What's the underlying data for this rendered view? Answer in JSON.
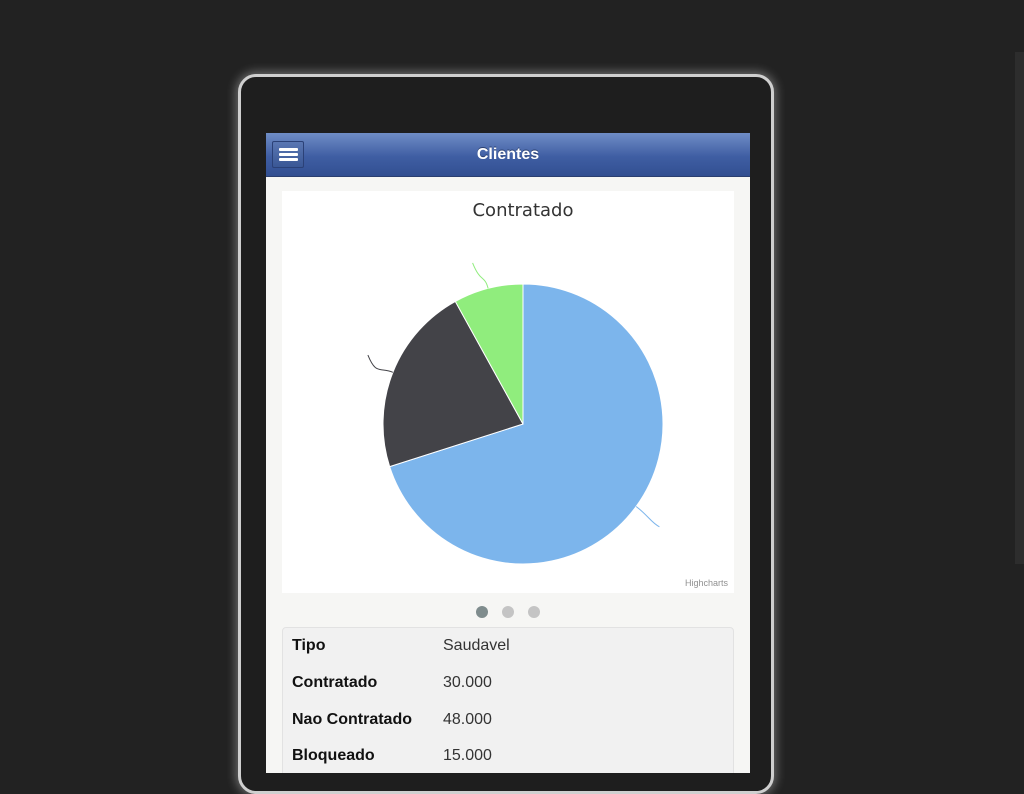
{
  "header": {
    "title": "Clientes",
    "menu_icon": "hamburger-menu-icon"
  },
  "chart_data": {
    "type": "pie",
    "title": "Contratado",
    "credit": "Highcharts",
    "slices": [
      {
        "name": "Nao Contratado",
        "value": 48000,
        "color": "#7cb5ec"
      },
      {
        "name": "Bloqueado",
        "value": 15000,
        "color": "#434348"
      },
      {
        "name": "",
        "value": 5500,
        "color": "#90ed7d"
      }
    ]
  },
  "pager": {
    "count": 3,
    "active_index": 0
  },
  "details": {
    "rows": [
      {
        "label": "Tipo",
        "value": "Saudavel"
      },
      {
        "label": "Contratado",
        "value": "30.000"
      },
      {
        "label": "Nao Contratado",
        "value": "48.000"
      },
      {
        "label": "Bloqueado",
        "value": "15.000"
      }
    ]
  },
  "colors": {
    "background": "#222222",
    "header_top": "#6f8dc6",
    "header_bottom": "#324f91"
  }
}
